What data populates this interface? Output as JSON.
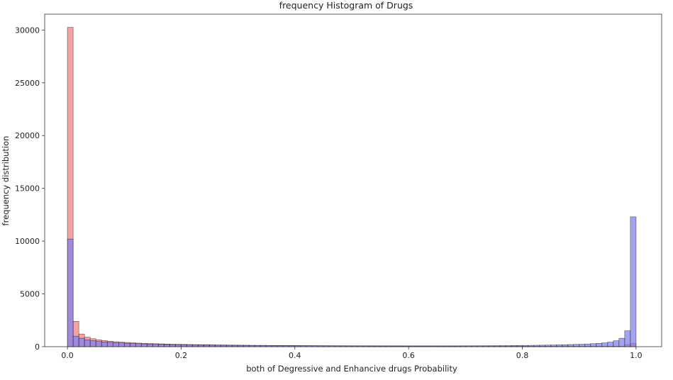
{
  "chart_data": {
    "type": "bar",
    "title": "frequency Histogram of Drugs",
    "xlabel": "both of Degressive and Enhancive drugs Probability",
    "ylabel": "frequency distribution",
    "xlim": [
      -0.04,
      1.045
    ],
    "ylim": [
      0,
      31500
    ],
    "xticks": [
      0.0,
      0.2,
      0.4,
      0.6,
      0.8,
      1.0
    ],
    "xtick_labels": [
      "0.0",
      "0.2",
      "0.4",
      "0.6",
      "0.8",
      "1.0"
    ],
    "yticks": [
      0,
      5000,
      10000,
      15000,
      20000,
      25000,
      30000
    ],
    "ytick_labels": [
      "0",
      "5000",
      "10000",
      "15000",
      "20000",
      "25000",
      "30000"
    ],
    "grid": false,
    "bin_edges_start": 0.0,
    "bin_width": 0.01,
    "series": [
      {
        "color": "#f08080",
        "values": [
          30250,
          2400,
          1200,
          900,
          750,
          650,
          580,
          520,
          470,
          430,
          400,
          370,
          340,
          320,
          300,
          280,
          265,
          250,
          238,
          226,
          215,
          205,
          196,
          188,
          180,
          173,
          166,
          160,
          154,
          148,
          143,
          138,
          133,
          129,
          125,
          121,
          117,
          114,
          111,
          108,
          105,
          102,
          99,
          97,
          95,
          93,
          91,
          89,
          87,
          85,
          83,
          82,
          80,
          79,
          78,
          76,
          75,
          74,
          73,
          72,
          71,
          70,
          69,
          68,
          67,
          66,
          65,
          64,
          63,
          62,
          61,
          60,
          59,
          58,
          57,
          56,
          55,
          54,
          53,
          52,
          51,
          50,
          49,
          48,
          47,
          46,
          45,
          44,
          43,
          42,
          41,
          40,
          39,
          38,
          37,
          36,
          35,
          34,
          200,
          320
        ]
      },
      {
        "color": "#8080f0",
        "values": [
          10200,
          1000,
          800,
          650,
          560,
          500,
          450,
          410,
          380,
          350,
          325,
          300,
          280,
          262,
          246,
          232,
          220,
          208,
          198,
          188,
          180,
          172,
          164,
          158,
          152,
          146,
          140,
          135,
          130,
          126,
          122,
          118,
          114,
          110,
          107,
          104,
          101,
          98,
          95,
          93,
          91,
          89,
          87,
          85,
          83,
          81,
          80,
          78,
          77,
          76,
          75,
          74,
          73,
          72,
          72,
          71,
          71,
          70,
          70,
          70,
          70,
          70,
          71,
          71,
          72,
          73,
          74,
          75,
          76,
          78,
          80,
          82,
          85,
          88,
          92,
          96,
          100,
          105,
          110,
          116,
          122,
          128,
          135,
          142,
          150,
          160,
          172,
          186,
          200,
          216,
          234,
          256,
          282,
          315,
          360,
          430,
          560,
          800,
          1500,
          12300
        ]
      }
    ]
  }
}
